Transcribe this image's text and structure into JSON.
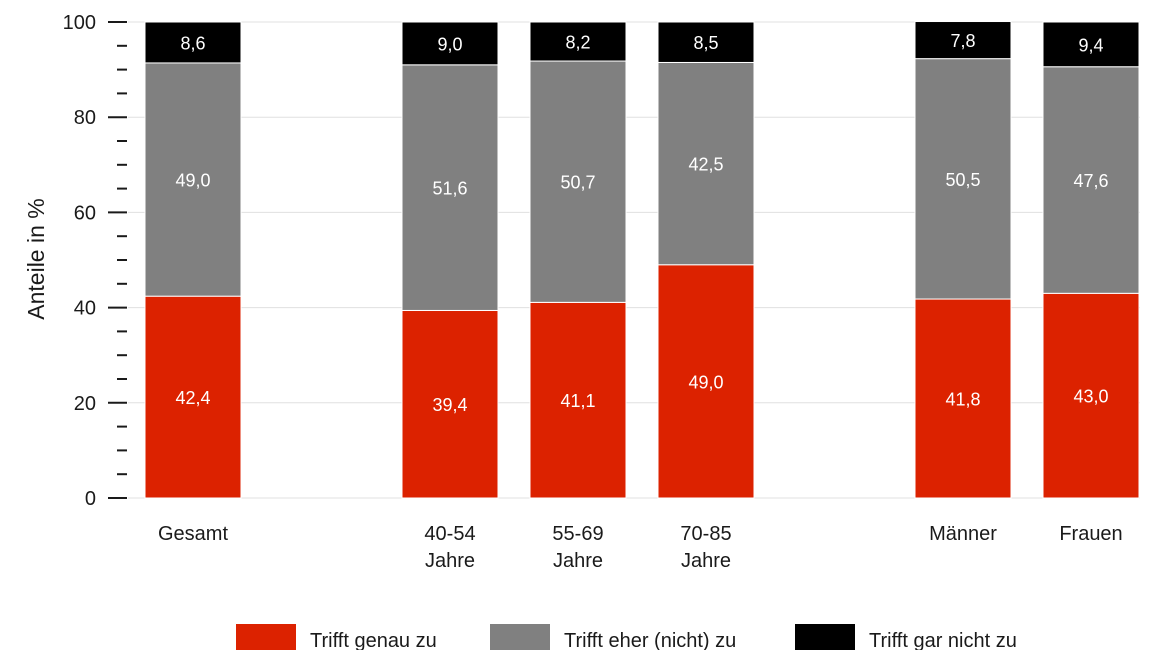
{
  "chart_data": {
    "type": "bar",
    "stacked": true,
    "ylabel": "Anteile in %",
    "ylim": [
      0,
      100
    ],
    "yticks": [
      "0",
      "20",
      "40",
      "60",
      "80",
      "100"
    ],
    "grid": true,
    "legend_position": "bottom",
    "categories": [
      [
        "Gesamt"
      ],
      [
        "40-54",
        "Jahre"
      ],
      [
        "55-69",
        "Jahre"
      ],
      [
        "70-85",
        "Jahre"
      ],
      [
        "Männer"
      ],
      [
        "Frauen"
      ]
    ],
    "series": [
      {
        "name": "Trifft genau zu",
        "color": "#dc2200",
        "values": [
          42.4,
          39.4,
          41.1,
          49.0,
          41.8,
          43.0
        ],
        "labels": [
          "42,4",
          "39,4",
          "41,1",
          "49,0",
          "41,8",
          "43,0"
        ]
      },
      {
        "name": "Trifft eher (nicht) zu",
        "color": "#808080",
        "values": [
          49.0,
          51.6,
          50.7,
          42.5,
          50.5,
          47.6
        ],
        "labels": [
          "49,0",
          "51,6",
          "50,7",
          "42,5",
          "50,5",
          "47,6"
        ]
      },
      {
        "name": "Trifft gar nicht zu",
        "color": "#000000",
        "values": [
          8.6,
          9.0,
          8.2,
          8.5,
          7.8,
          9.4
        ],
        "labels": [
          "8,6",
          "9,0",
          "8,2",
          "8,5",
          "7,8",
          "9,4"
        ]
      }
    ]
  }
}
